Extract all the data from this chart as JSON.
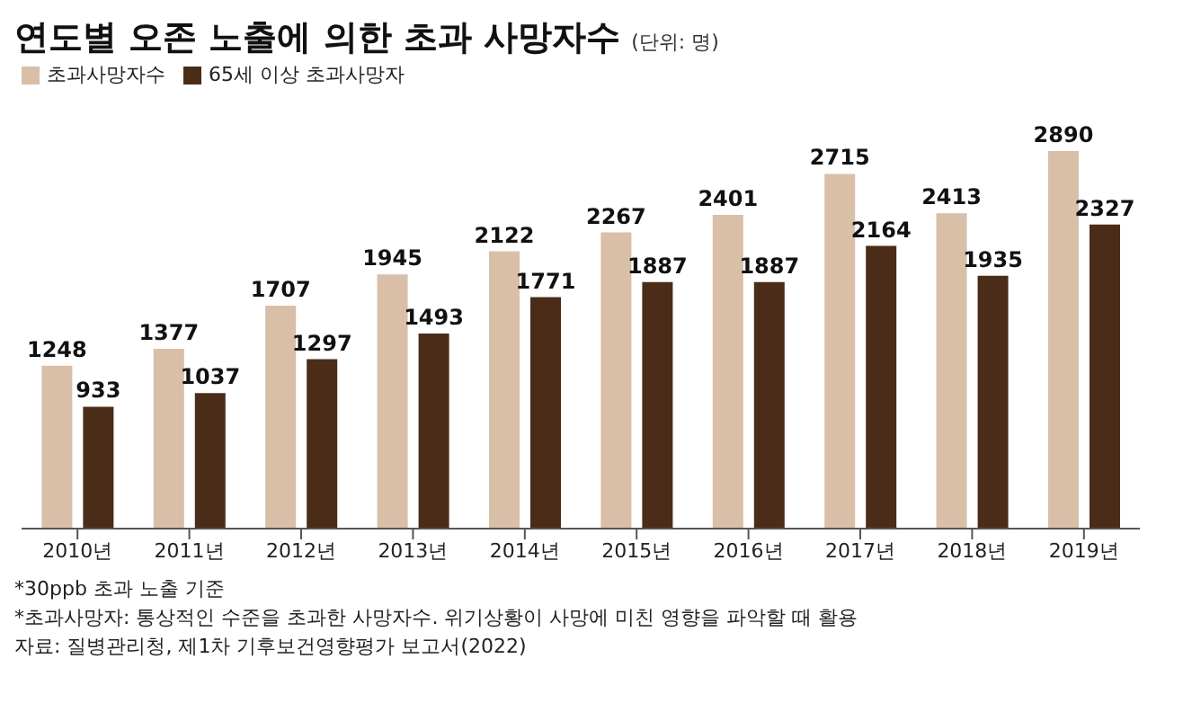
{
  "chart_data": {
    "type": "bar",
    "title": "연도별 오존 노출에 의한 초과 사망자수",
    "subtitle": "(단위: 명)",
    "categories": [
      "2010년",
      "2011년",
      "2012년",
      "2013년",
      "2014년",
      "2015년",
      "2016년",
      "2017년",
      "2018년",
      "2019년"
    ],
    "series": [
      {
        "name": "초과사망자수",
        "color": "#d9bea8",
        "values": [
          1248,
          1377,
          1707,
          1945,
          2122,
          2267,
          2401,
          2715,
          2413,
          2890
        ]
      },
      {
        "name": "65세 이상 초과사망자",
        "color": "#4b2c18",
        "values": [
          933,
          1037,
          1297,
          1493,
          1771,
          1887,
          1887,
          2164,
          1935,
          2327
        ]
      }
    ],
    "data_labels": true,
    "grid": false,
    "legend": "top left",
    "annotations": [
      "*30ppb 초과 노출 기준",
      "*초과사망자: 통상적인 수준을 초과한 사망자수. 위기상황이 사망에 미친 영향을 파악할 때 활용",
      "자료: 질병관리청, 제1차 기후보건영향평가 보고서(2022)"
    ]
  }
}
